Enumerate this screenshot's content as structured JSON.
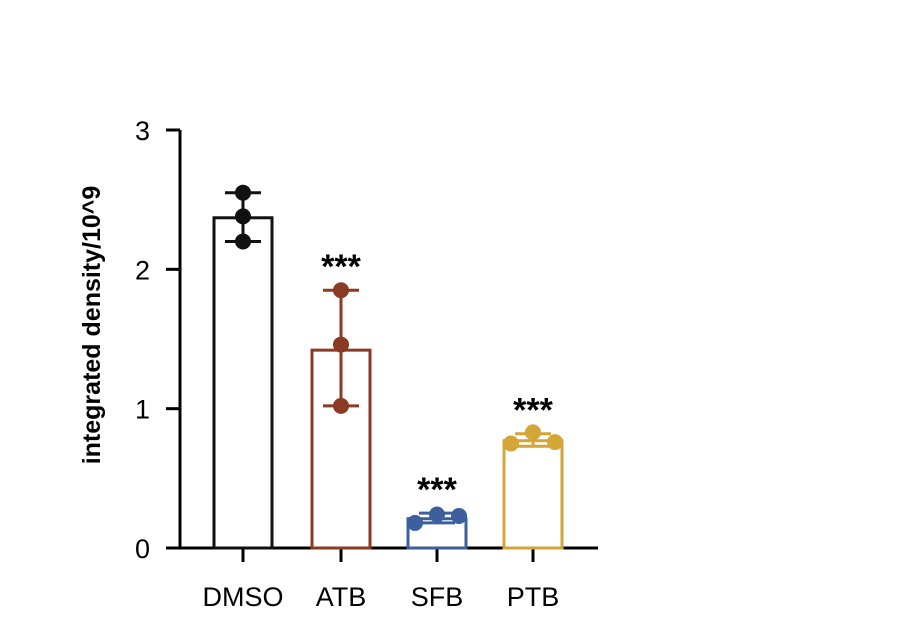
{
  "chart_data": {
    "type": "bar",
    "ylabel": "integrated density/10^9",
    "ylim": [
      0,
      3
    ],
    "yticks": [
      "0",
      "1",
      "2",
      "3"
    ],
    "categories": [
      "DMSO",
      "ATB",
      "SFB",
      "PTB"
    ],
    "values": [
      2.37,
      1.42,
      0.21,
      0.77
    ],
    "error": [
      {
        "low": 2.2,
        "high": 2.55
      },
      {
        "low": 1.02,
        "high": 1.85
      },
      {
        "low": 0.18,
        "high": 0.25
      },
      {
        "low": 0.73,
        "high": 0.82
      }
    ],
    "points": [
      [
        2.2,
        2.38,
        2.55
      ],
      [
        1.02,
        1.46,
        1.85
      ],
      [
        0.18,
        0.24,
        0.23
      ],
      [
        0.75,
        0.83,
        0.76
      ]
    ],
    "significance": [
      "",
      "***",
      "***",
      "***"
    ],
    "colors": [
      "#111111",
      "#8b3a24",
      "#3d5f9e",
      "#d4a537"
    ],
    "grid": false
  }
}
